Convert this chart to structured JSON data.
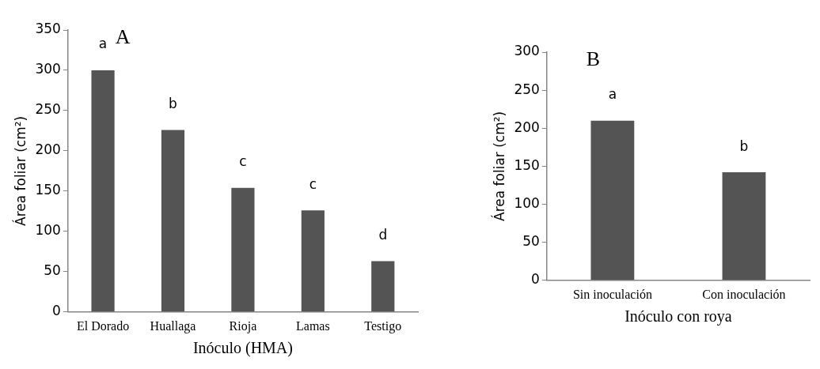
{
  "chart_data": [
    {
      "type": "bar",
      "title": "A",
      "xlabel": "Inóculo (HMA)",
      "ylabel": "Área foliar (cm²)",
      "categories": [
        "El Dorado",
        "Huallaga",
        "Rioja",
        "Lamas",
        "Testigo"
      ],
      "values": [
        300,
        226,
        154,
        126,
        63
      ],
      "color": "#545454",
      "ylim": [
        0,
        350
      ],
      "yticks": [
        0,
        50,
        100,
        150,
        200,
        250,
        300,
        350
      ],
      "grid": false,
      "value_labels": [
        "a",
        "b",
        "c",
        "c",
        "d"
      ]
    },
    {
      "type": "bar",
      "title": "B",
      "xlabel": "Inóculo con roya",
      "ylabel": "Área foliar (cm²)",
      "categories": [
        "Sin inoculación",
        "Con inoculación"
      ],
      "values": [
        210,
        142
      ],
      "color": "#545454",
      "ylim": [
        0,
        300
      ],
      "yticks": [
        0,
        50,
        100,
        150,
        200,
        250,
        300
      ],
      "grid": false,
      "value_labels": [
        "a",
        "b"
      ]
    }
  ]
}
